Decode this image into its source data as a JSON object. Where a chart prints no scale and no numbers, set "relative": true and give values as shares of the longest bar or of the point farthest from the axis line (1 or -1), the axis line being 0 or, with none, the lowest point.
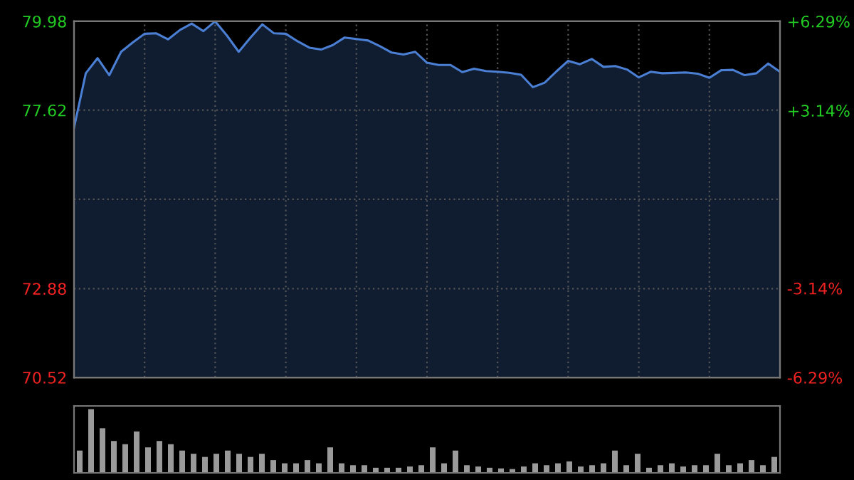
{
  "chart_data": [
    {
      "type": "area",
      "color": "#4a7fd4",
      "grid": true,
      "categories": [
        null,
        null,
        null,
        null,
        null,
        null,
        null,
        null,
        null,
        null,
        null,
        null,
        null,
        null,
        null,
        null,
        null,
        null,
        null,
        null,
        null,
        null,
        null,
        null,
        null,
        null,
        null,
        null,
        null,
        null,
        null,
        null,
        null,
        null,
        null,
        null,
        null,
        null,
        null,
        null,
        null,
        null,
        null,
        null,
        null,
        null,
        null,
        null,
        null,
        null,
        null,
        null,
        null,
        null,
        null,
        null,
        null,
        null,
        null,
        null,
        null
      ],
      "ylim": [
        70.52,
        79.98
      ],
      "yticks": [
        70.52,
        72.88,
        {
          "value": 75.25,
          "label": null
        },
        77.62,
        79.98
      ],
      "y2lim": [
        -6.29,
        6.29
      ],
      "y2ticks": [
        {
          "value": -6.29,
          "label": "-6.29%"
        },
        {
          "value": -3.14,
          "label": "-3.14%"
        },
        {
          "value": 0,
          "label": null
        },
        {
          "value": 3.14,
          "label": "+3.14%"
        },
        {
          "value": 6.29,
          "label": "+6.29%"
        }
      ],
      "values": [
        77.15,
        78.6,
        79.0,
        78.55,
        79.17,
        79.42,
        79.65,
        79.66,
        79.5,
        79.75,
        79.92,
        79.72,
        79.98,
        79.6,
        79.17,
        79.55,
        79.9,
        79.66,
        79.65,
        79.45,
        79.28,
        79.23,
        79.35,
        79.55,
        79.51,
        79.47,
        79.32,
        79.15,
        79.1,
        79.17,
        78.88,
        78.82,
        78.82,
        78.63,
        78.72,
        78.66,
        78.64,
        78.61,
        78.56,
        78.23,
        78.35,
        78.65,
        78.93,
        78.84,
        78.98,
        78.77,
        78.79,
        78.7,
        78.49,
        78.64,
        78.6,
        78.61,
        78.62,
        78.59,
        78.48,
        78.68,
        78.69,
        78.55,
        78.6,
        78.86,
        78.64
      ]
    },
    {
      "type": "bar",
      "relative": true,
      "color": "#9a9a9a",
      "categories": [
        null,
        null,
        null,
        null,
        null,
        null,
        null,
        null,
        null,
        null,
        null,
        null,
        null,
        null,
        null,
        null,
        null,
        null,
        null,
        null,
        null,
        null,
        null,
        null,
        null,
        null,
        null,
        null,
        null,
        null,
        null,
        null,
        null,
        null,
        null,
        null,
        null,
        null,
        null,
        null,
        null,
        null,
        null,
        null,
        null,
        null,
        null,
        null,
        null,
        null,
        null,
        null,
        null,
        null,
        null,
        null,
        null,
        null,
        null,
        null,
        null,
        null
      ],
      "values": [
        0.35,
        1.0,
        0.7,
        0.5,
        0.45,
        0.65,
        0.4,
        0.5,
        0.45,
        0.35,
        0.3,
        0.25,
        0.3,
        0.35,
        0.3,
        0.25,
        0.3,
        0.2,
        0.15,
        0.15,
        0.2,
        0.15,
        0.4,
        0.15,
        0.12,
        0.12,
        0.08,
        0.08,
        0.08,
        0.1,
        0.12,
        0.4,
        0.15,
        0.35,
        0.12,
        0.1,
        0.08,
        0.07,
        0.06,
        0.1,
        0.15,
        0.12,
        0.15,
        0.18,
        0.1,
        0.12,
        0.15,
        0.35,
        0.12,
        0.3,
        0.08,
        0.12,
        0.15,
        0.1,
        0.12,
        0.12,
        0.3,
        0.12,
        0.15,
        0.2,
        0.12,
        0.25
      ]
    }
  ]
}
